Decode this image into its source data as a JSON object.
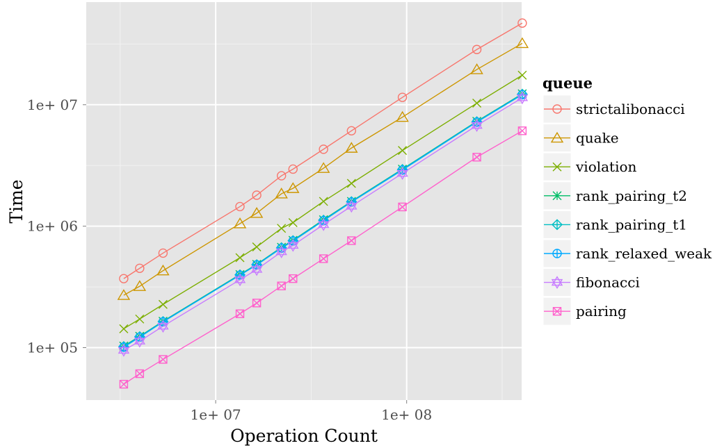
{
  "chart_data": {
    "type": "line",
    "xlabel": "Operation Count",
    "ylabel": "Time",
    "x_scale": "log10",
    "y_scale": "log10",
    "xlim": [
      2100000,
      400000000
    ],
    "ylim": [
      37000,
      70000000
    ],
    "x_ticks": [
      {
        "value": 10000000,
        "label": "1e+ 07"
      },
      {
        "value": 100000000,
        "label": "1e+ 08"
      }
    ],
    "y_ticks": [
      {
        "value": 100000,
        "label": "1e+ 05"
      },
      {
        "value": 1000000,
        "label": "1e+ 06"
      },
      {
        "value": 10000000,
        "label": "1e+ 07"
      }
    ],
    "grid": true,
    "legend": {
      "title": "queue",
      "position": "right"
    },
    "x": [
      3300000,
      4000000,
      5300000,
      13400000,
      16400000,
      22100000,
      25400000,
      36700000,
      51400000,
      95000000,
      233000000,
      403000000
    ],
    "series": [
      {
        "name": "strictalibonacci",
        "color": "#F8766D",
        "marker": "circle",
        "values": [
          370000,
          450000,
          600000,
          1450000,
          1800000,
          2600000,
          2950000,
          4300000,
          6100000,
          11500000,
          28500000,
          47000000
        ]
      },
      {
        "name": "quake",
        "color": "#CD9600",
        "marker": "triangle",
        "values": [
          270000,
          320000,
          430000,
          1050000,
          1280000,
          1850000,
          2050000,
          3000000,
          4400000,
          7900000,
          19500000,
          32000000
        ]
      },
      {
        "name": "violation",
        "color": "#7CAE00",
        "marker": "x",
        "values": [
          143000,
          172000,
          227000,
          550000,
          675000,
          960000,
          1070000,
          1600000,
          2250000,
          4200000,
          10300000,
          17500000
        ]
      },
      {
        "name": "rank_pairing_t2",
        "color": "#00BE67",
        "marker": "asterisk",
        "values": [
          103000,
          124000,
          165000,
          400000,
          485000,
          670000,
          765000,
          1130000,
          1600000,
          2950000,
          7300000,
          12300000
        ]
      },
      {
        "name": "rank_pairing_t1",
        "color": "#00BFC4",
        "marker": "diamond-plus",
        "values": [
          102000,
          123000,
          164000,
          397000,
          482000,
          665000,
          760000,
          1120000,
          1590000,
          2930000,
          7250000,
          12200000
        ]
      },
      {
        "name": "rank_relaxed_weak",
        "color": "#00A9FF",
        "marker": "circle-plus",
        "values": [
          101000,
          122000,
          163000,
          395000,
          480000,
          660000,
          755000,
          1110000,
          1580000,
          2900000,
          7200000,
          12100000
        ]
      },
      {
        "name": "fibonacci",
        "color": "#C77CFF",
        "marker": "star",
        "values": [
          95000,
          113000,
          150000,
          362000,
          440000,
          615000,
          695000,
          1030000,
          1460000,
          2720000,
          6750000,
          11400000
        ]
      },
      {
        "name": "pairing",
        "color": "#FF61CC",
        "marker": "square-x",
        "values": [
          50000,
          61000,
          80000,
          190000,
          233000,
          322000,
          370000,
          540000,
          760000,
          1440000,
          3700000,
          6100000
        ]
      }
    ]
  }
}
